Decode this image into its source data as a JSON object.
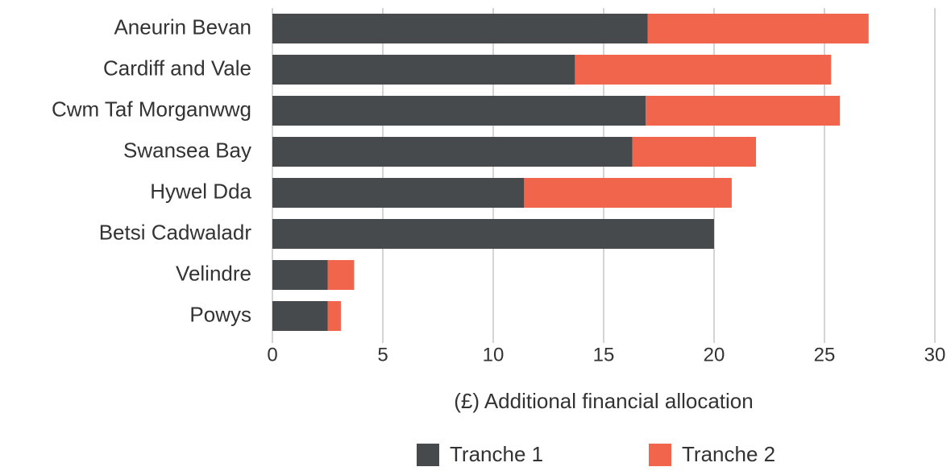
{
  "chart_data": {
    "type": "stacked_bar_horizontal",
    "x_label": "(£) Additional financial allocation",
    "categories": [
      "Aneurin Bevan",
      "Cardiff and Vale",
      "Cwm Taf Morganwwg",
      "Swansea Bay",
      "Hywel Dda",
      "Betsi Cadwaladr",
      "Velindre",
      "Powys"
    ],
    "series": [
      {
        "name": "Tranche 1",
        "color": "#474a4d",
        "values": [
          17.0,
          13.7,
          16.9,
          16.3,
          11.4,
          20.0,
          2.5,
          2.5
        ]
      },
      {
        "name": "Tranche 2",
        "color": "#f0654b",
        "values": [
          10.0,
          11.6,
          8.8,
          5.6,
          9.4,
          0,
          1.2,
          0.6
        ]
      }
    ],
    "xlim": [
      0,
      30
    ],
    "xticks": [
      0,
      5,
      10,
      15,
      20,
      25,
      30
    ],
    "grid": true,
    "legend": "bottom"
  }
}
